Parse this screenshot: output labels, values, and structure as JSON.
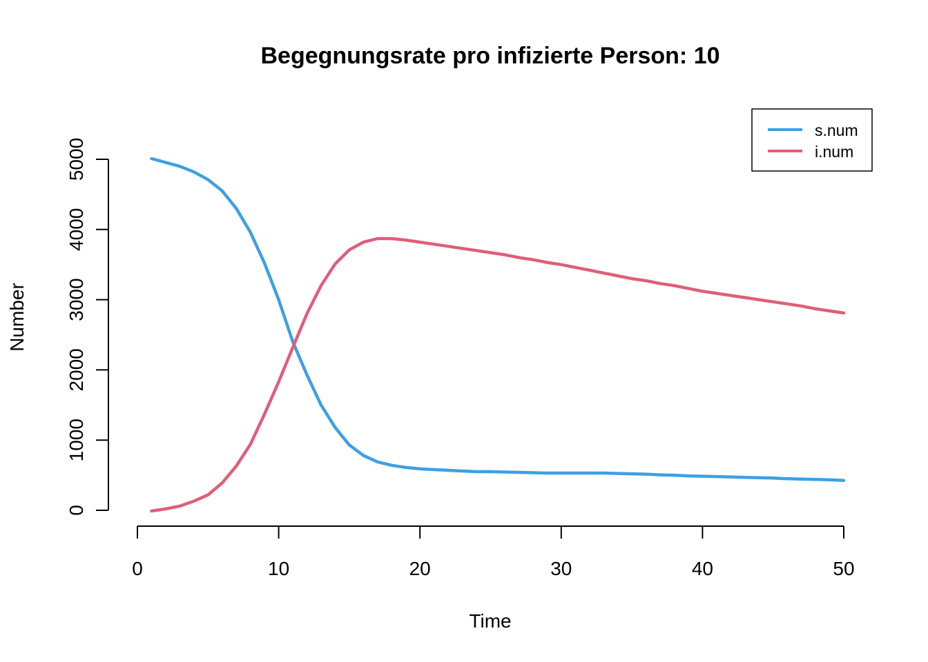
{
  "chart_data": {
    "type": "line",
    "title": "Begegnungsrate pro infizierte Person:  10",
    "xlabel": "Time",
    "ylabel": "Number",
    "xlim": [
      0,
      50
    ],
    "ylim": [
      0,
      5000
    ],
    "x_ticks": [
      0,
      10,
      20,
      30,
      40,
      50
    ],
    "y_ticks": [
      0,
      1000,
      2000,
      3000,
      4000,
      5000
    ],
    "x_tick_labels": [
      "0",
      "10",
      "20",
      "30",
      "40",
      "50"
    ],
    "y_tick_labels": [
      "0",
      "1000",
      "2000",
      "3000",
      "4000",
      "5000"
    ],
    "grid": false,
    "legend": {
      "position": "top-right"
    },
    "x": [
      1,
      2,
      3,
      4,
      5,
      6,
      7,
      8,
      9,
      10,
      11,
      12,
      13,
      14,
      15,
      16,
      17,
      18,
      19,
      20,
      21,
      22,
      23,
      24,
      25,
      26,
      27,
      28,
      29,
      30,
      31,
      32,
      33,
      34,
      35,
      36,
      37,
      38,
      39,
      40,
      41,
      42,
      43,
      44,
      45,
      46,
      47,
      48,
      49,
      50
    ],
    "series": [
      {
        "name": "s.num",
        "color": "#3DA0E3",
        "values": [
          5010,
          4955,
          4900,
          4820,
          4710,
          4550,
          4300,
          3960,
          3520,
          3000,
          2400,
          1930,
          1500,
          1180,
          930,
          780,
          690,
          640,
          610,
          590,
          580,
          570,
          560,
          550,
          550,
          545,
          540,
          535,
          530,
          530,
          530,
          530,
          530,
          525,
          520,
          515,
          505,
          500,
          490,
          485,
          480,
          475,
          470,
          465,
          460,
          450,
          445,
          440,
          435,
          425
        ]
      },
      {
        "name": "i.num",
        "color": "#DF5E7A",
        "values": [
          -10,
          20,
          60,
          130,
          220,
          390,
          630,
          940,
          1370,
          1830,
          2320,
          2800,
          3200,
          3510,
          3710,
          3820,
          3870,
          3870,
          3850,
          3820,
          3790,
          3760,
          3730,
          3700,
          3670,
          3640,
          3600,
          3570,
          3530,
          3500,
          3460,
          3420,
          3380,
          3340,
          3300,
          3270,
          3230,
          3200,
          3160,
          3120,
          3090,
          3060,
          3030,
          3000,
          2970,
          2940,
          2910,
          2870,
          2840,
          2810
        ]
      }
    ]
  }
}
